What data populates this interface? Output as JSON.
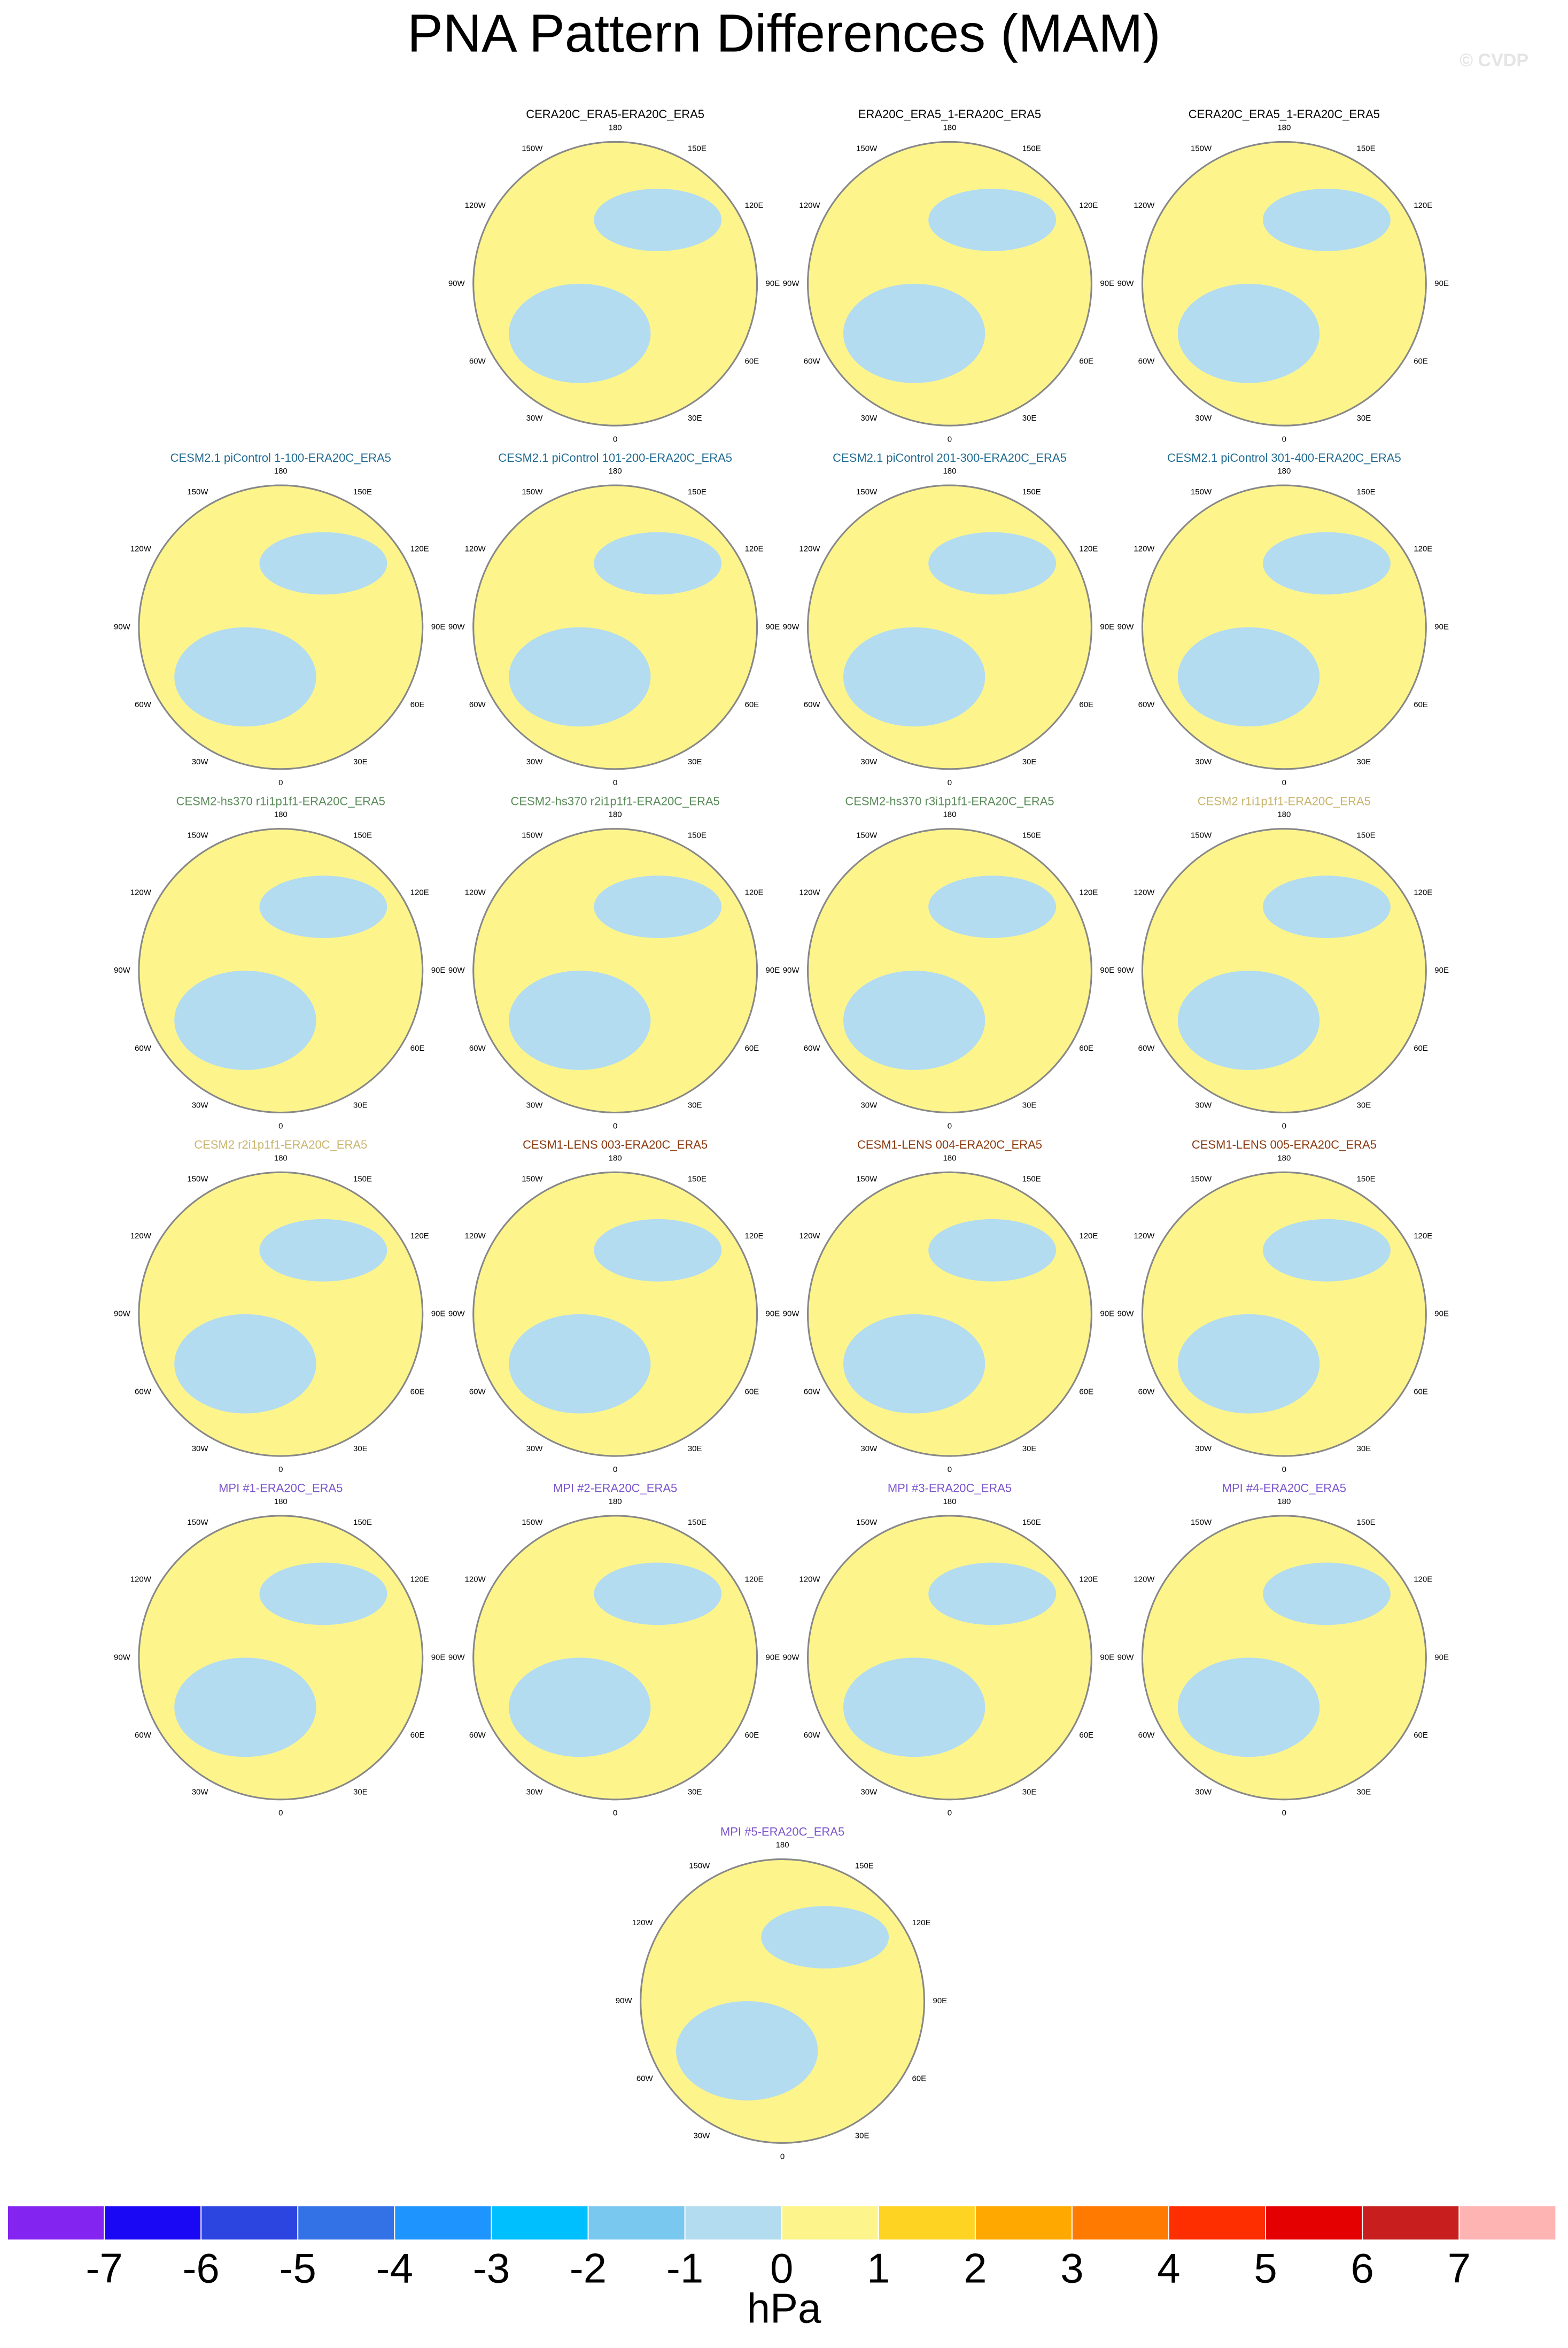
{
  "chart_data": {
    "type": "polar-contour",
    "title": "PNA Pattern Differences (MAM)",
    "watermark": "© CVDP",
    "lon_labels": [
      "180",
      "150E",
      "120E",
      "90E",
      "60E",
      "30E",
      "0",
      "30W",
      "60W",
      "90W",
      "120W",
      "150W"
    ],
    "panels": [
      {
        "title": "CERA20C_ERA5-ERA20C_ERA5",
        "title_color": "#000000"
      },
      {
        "title": "ERA20C_ERA5_1-ERA20C_ERA5",
        "title_color": "#000000"
      },
      {
        "title": "CERA20C_ERA5_1-ERA20C_ERA5",
        "title_color": "#000000"
      },
      {
        "title": "CESM2.1 piControl 1-100-ERA20C_ERA5",
        "title_color": "#1f6a93"
      },
      {
        "title": "CESM2.1 piControl 101-200-ERA20C_ERA5",
        "title_color": "#1f6a93"
      },
      {
        "title": "CESM2.1 piControl 201-300-ERA20C_ERA5",
        "title_color": "#1f6a93"
      },
      {
        "title": "CESM2.1 piControl 301-400-ERA20C_ERA5",
        "title_color": "#1f6a93"
      },
      {
        "title": "CESM2-hs370 r1i1p1f1-ERA20C_ERA5",
        "title_color": "#5b8c5a"
      },
      {
        "title": "CESM2-hs370 r2i1p1f1-ERA20C_ERA5",
        "title_color": "#5b8c5a"
      },
      {
        "title": "CESM2-hs370 r3i1p1f1-ERA20C_ERA5",
        "title_color": "#5b8c5a"
      },
      {
        "title": "CESM2 r1i1p1f1-ERA20C_ERA5",
        "title_color": "#c9b46c"
      },
      {
        "title": "CESM2 r2i1p1f1-ERA20C_ERA5",
        "title_color": "#c9b46c"
      },
      {
        "title": "CESM1-LENS 003-ERA20C_ERA5",
        "title_color": "#8b3a10"
      },
      {
        "title": "CESM1-LENS 004-ERA20C_ERA5",
        "title_color": "#8b3a10"
      },
      {
        "title": "CESM1-LENS 005-ERA20C_ERA5",
        "title_color": "#8b3a10"
      },
      {
        "title": "MPI #1-ERA20C_ERA5",
        "title_color": "#7b55cc"
      },
      {
        "title": "MPI #2-ERA20C_ERA5",
        "title_color": "#7b55cc"
      },
      {
        "title": "MPI #3-ERA20C_ERA5",
        "title_color": "#7b55cc"
      },
      {
        "title": "MPI #4-ERA20C_ERA5",
        "title_color": "#7b55cc"
      },
      {
        "title": "MPI #5-ERA20C_ERA5",
        "title_color": "#7b55cc"
      }
    ],
    "colorbar": {
      "levels": [
        -7,
        -6,
        -5,
        -4,
        -3,
        -2,
        -1,
        0,
        1,
        2,
        3,
        4,
        5,
        6,
        7
      ],
      "colors": [
        "#8424f0",
        "#1a08f4",
        "#2c44e0",
        "#3272e6",
        "#1e94ff",
        "#00bfff",
        "#78c8f0",
        "#b4dcf0",
        "#fdf58c",
        "#ffd322",
        "#ffa800",
        "#ff7a00",
        "#ff2e00",
        "#e40000",
        "#c81e1e",
        "#ffb4b4"
      ],
      "unit": "hPa"
    }
  }
}
